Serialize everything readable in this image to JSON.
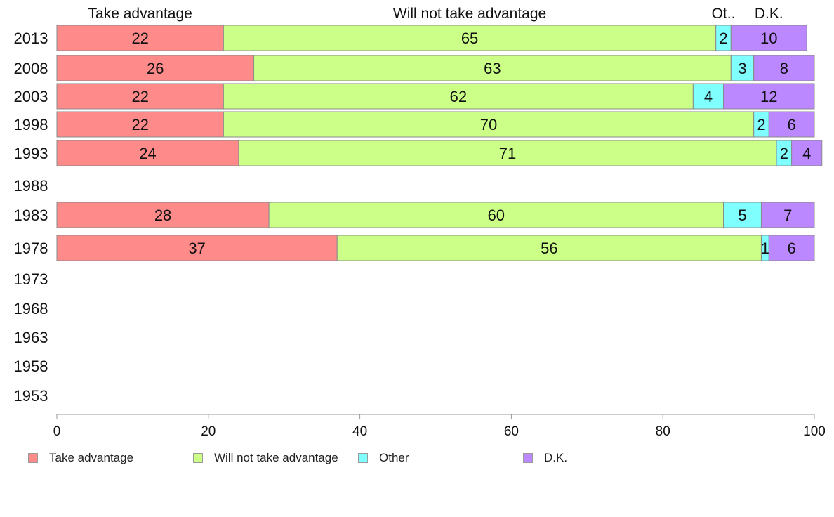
{
  "chart_data": {
    "type": "bar",
    "orientation": "horizontal",
    "stacked": true,
    "categories": [
      "2013",
      "2008",
      "2003",
      "1998",
      "1993",
      "1988",
      "1983",
      "1978",
      "1973",
      "1968",
      "1963",
      "1958",
      "1953"
    ],
    "series": [
      {
        "name": "Take advantage",
        "short_name": "Take advantage",
        "color": "#ff8a8a",
        "values": [
          22,
          26,
          22,
          22,
          24,
          null,
          28,
          37,
          null,
          null,
          null,
          null,
          null
        ]
      },
      {
        "name": "Will not take advantage",
        "short_name": "Will not take advantage",
        "color": "#ccff88",
        "values": [
          65,
          63,
          62,
          70,
          71,
          null,
          60,
          56,
          null,
          null,
          null,
          null,
          null
        ]
      },
      {
        "name": "Other",
        "short_name": "Ot..",
        "color": "#80ffff",
        "values": [
          2,
          3,
          4,
          2,
          2,
          null,
          5,
          1,
          null,
          null,
          null,
          null,
          null
        ]
      },
      {
        "name": "D.K.",
        "short_name": "D.K.",
        "color": "#bb88ff",
        "values": [
          10,
          8,
          12,
          6,
          4,
          null,
          7,
          6,
          null,
          null,
          null,
          null,
          null
        ]
      }
    ],
    "xlim": [
      0,
      100
    ],
    "xticks": [
      0,
      20,
      40,
      60,
      80,
      100
    ],
    "legend_position": "bottom",
    "grid": false
  }
}
